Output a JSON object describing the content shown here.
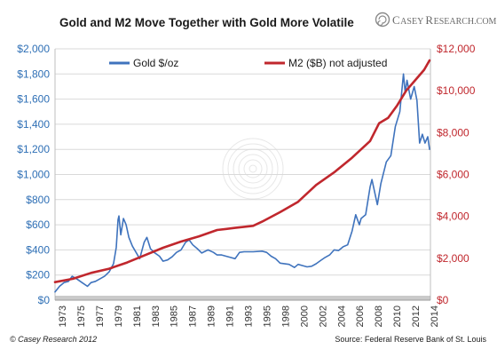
{
  "title": "Gold and M2 Move Together with Gold More Volatile",
  "brand": {
    "name_big": "C",
    "name_rest": "ASEY ",
    "name_big2": "R",
    "name_rest2": "ESEARCH",
    "suffix": ".COM",
    "logo_icon": "spiral-logo-icon"
  },
  "footer": {
    "left": "© Casey Research 2012",
    "right": "Source:  Federal Reserve Bank of St. Louis"
  },
  "colors": {
    "gold": "#3f73bd",
    "m2": "#c0272d",
    "left_axis": "#2e6fb5",
    "right_axis": "#c0272d",
    "grid": "#d9d9d9"
  },
  "chart_data": {
    "type": "line",
    "title": "Gold and M2 Move Together with Gold More Volatile",
    "grid": true,
    "legend_placement": "top",
    "x_ticks": [
      "1973",
      "1975",
      "1977",
      "1979",
      "1981",
      "1983",
      "1985",
      "1987",
      "1989",
      "1991",
      "1993",
      "1995",
      "1998",
      "2000",
      "2002",
      "2004",
      "2006",
      "2008",
      "2010",
      "2012",
      "2014"
    ],
    "y_left": {
      "range": [
        0,
        2000
      ],
      "ticks": [
        "$0",
        "$200",
        "$400",
        "$600",
        "$800",
        "$1,000",
        "$1,200",
        "$1,400",
        "$1,600",
        "$1,800",
        "$2,000"
      ]
    },
    "y_right": {
      "range": [
        0,
        12000
      ],
      "ticks": [
        "$0",
        "$2,000",
        "$4,000",
        "$6,000",
        "$8,000",
        "$10,000",
        "$12,000"
      ]
    },
    "series": [
      {
        "name": "Gold $/oz",
        "axis": "left",
        "points": [
          [
            1973.0,
            65
          ],
          [
            1973.5,
            110
          ],
          [
            1974.0,
            140
          ],
          [
            1974.5,
            150
          ],
          [
            1974.9,
            190
          ],
          [
            1975.5,
            165
          ],
          [
            1976.0,
            140
          ],
          [
            1976.6,
            110
          ],
          [
            1977.0,
            140
          ],
          [
            1977.5,
            150
          ],
          [
            1978.0,
            170
          ],
          [
            1978.5,
            190
          ],
          [
            1979.0,
            225
          ],
          [
            1979.5,
            290
          ],
          [
            1979.8,
            420
          ],
          [
            1980.0,
            640
          ],
          [
            1980.1,
            670
          ],
          [
            1980.3,
            520
          ],
          [
            1980.6,
            650
          ],
          [
            1980.9,
            600
          ],
          [
            1981.2,
            500
          ],
          [
            1981.6,
            430
          ],
          [
            1982.0,
            380
          ],
          [
            1982.4,
            330
          ],
          [
            1982.9,
            460
          ],
          [
            1983.2,
            500
          ],
          [
            1983.6,
            410
          ],
          [
            1984.0,
            380
          ],
          [
            1984.6,
            350
          ],
          [
            1985.0,
            310
          ],
          [
            1985.5,
            320
          ],
          [
            1986.0,
            345
          ],
          [
            1986.5,
            380
          ],
          [
            1987.0,
            400
          ],
          [
            1987.5,
            460
          ],
          [
            1987.9,
            480
          ],
          [
            1988.3,
            440
          ],
          [
            1988.8,
            410
          ],
          [
            1989.3,
            375
          ],
          [
            1990.0,
            400
          ],
          [
            1990.6,
            380
          ],
          [
            1991.0,
            360
          ],
          [
            1991.5,
            360
          ],
          [
            1992.0,
            350
          ],
          [
            1992.5,
            340
          ],
          [
            1993.0,
            330
          ],
          [
            1993.5,
            380
          ],
          [
            1994.0,
            385
          ],
          [
            1995.0,
            385
          ],
          [
            1996.0,
            390
          ],
          [
            1996.5,
            380
          ],
          [
            1997.0,
            350
          ],
          [
            1997.5,
            330
          ],
          [
            1998.0,
            295
          ],
          [
            1999.0,
            285
          ],
          [
            1999.6,
            260
          ],
          [
            2000.0,
            285
          ],
          [
            2000.5,
            275
          ],
          [
            2001.0,
            265
          ],
          [
            2001.5,
            270
          ],
          [
            2002.0,
            290
          ],
          [
            2002.5,
            315
          ],
          [
            2003.0,
            340
          ],
          [
            2003.5,
            360
          ],
          [
            2004.0,
            400
          ],
          [
            2004.5,
            395
          ],
          [
            2005.0,
            425
          ],
          [
            2005.5,
            440
          ],
          [
            2006.0,
            550
          ],
          [
            2006.4,
            680
          ],
          [
            2006.8,
            600
          ],
          [
            2007.0,
            650
          ],
          [
            2007.5,
            680
          ],
          [
            2008.0,
            900
          ],
          [
            2008.2,
            960
          ],
          [
            2008.8,
            760
          ],
          [
            2009.2,
            930
          ],
          [
            2009.8,
            1100
          ],
          [
            2010.3,
            1150
          ],
          [
            2010.8,
            1380
          ],
          [
            2011.3,
            1500
          ],
          [
            2011.7,
            1800
          ],
          [
            2011.9,
            1650
          ],
          [
            2012.1,
            1750
          ],
          [
            2012.5,
            1600
          ],
          [
            2012.9,
            1700
          ],
          [
            2013.2,
            1590
          ],
          [
            2013.5,
            1250
          ],
          [
            2013.8,
            1320
          ],
          [
            2014.1,
            1250
          ],
          [
            2014.4,
            1300
          ],
          [
            2014.6,
            1200
          ]
        ]
      },
      {
        "name": "M2 ($B) not adjusted",
        "axis": "right",
        "points": [
          [
            1973.0,
            860
          ],
          [
            1975.0,
            1020
          ],
          [
            1977.0,
            1300
          ],
          [
            1979.0,
            1500
          ],
          [
            1981.0,
            1800
          ],
          [
            1983.0,
            2150
          ],
          [
            1985.0,
            2500
          ],
          [
            1987.0,
            2800
          ],
          [
            1989.0,
            3050
          ],
          [
            1991.0,
            3350
          ],
          [
            1993.0,
            3450
          ],
          [
            1995.0,
            3550
          ],
          [
            1996.0,
            3750
          ],
          [
            1998.0,
            4200
          ],
          [
            2000.0,
            4700
          ],
          [
            2002.0,
            5500
          ],
          [
            2004.0,
            6100
          ],
          [
            2006.0,
            6800
          ],
          [
            2008.0,
            7600
          ],
          [
            2009.0,
            8450
          ],
          [
            2010.0,
            8700
          ],
          [
            2011.0,
            9300
          ],
          [
            2012.0,
            10000
          ],
          [
            2013.0,
            10500
          ],
          [
            2014.0,
            11000
          ],
          [
            2014.6,
            11450
          ]
        ]
      }
    ]
  }
}
